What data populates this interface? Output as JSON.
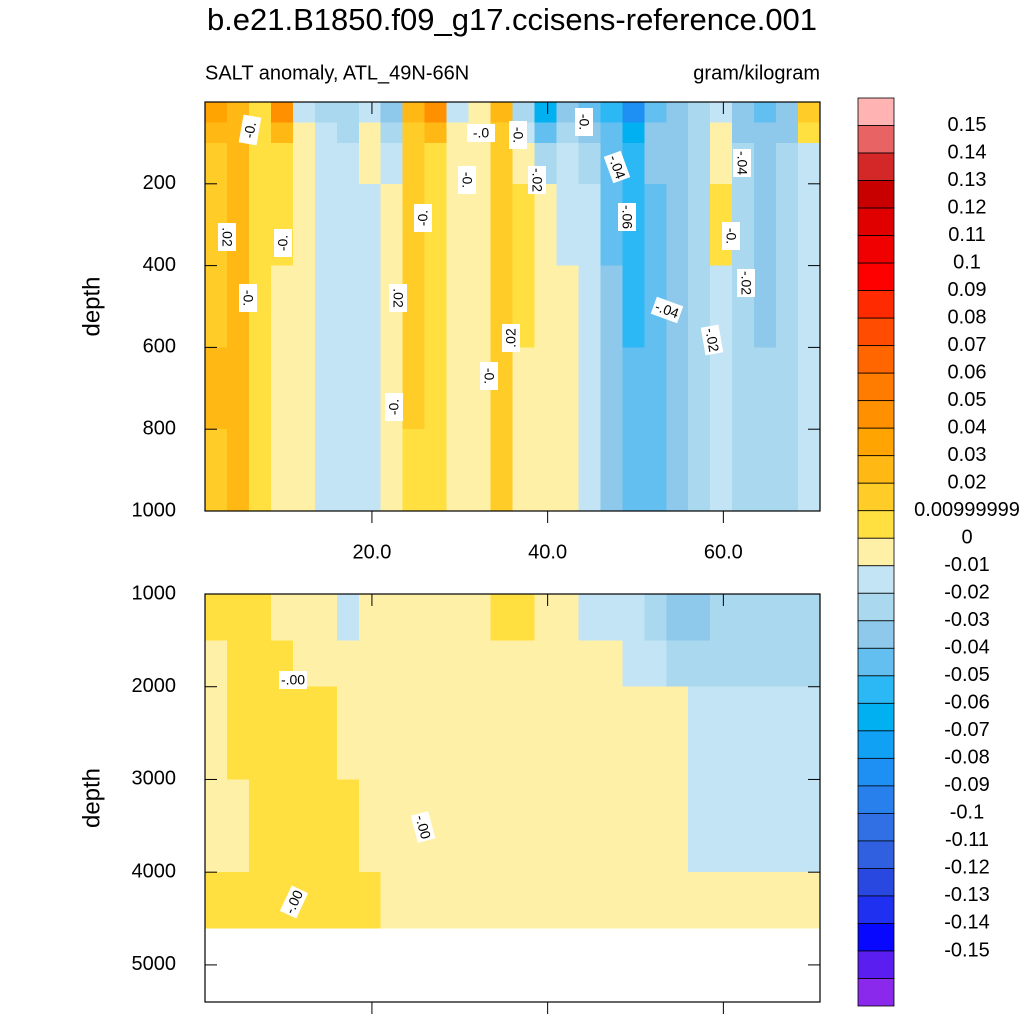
{
  "title": "b.e21.B1850.f09_g17.ccisens-reference.001",
  "chart_data": [
    {
      "type": "heatmap",
      "subtitle_left": "SALT anomaly, ATL_49N-66N",
      "subtitle_right": "gram/kilogram",
      "ylabel": "depth",
      "x_edges": [
        1,
        3.5,
        6,
        8.5,
        11,
        13.5,
        16,
        18.5,
        21,
        23.5,
        26,
        28.5,
        31,
        33.5,
        36,
        38.5,
        41,
        43.5,
        46,
        48.5,
        51,
        53.5,
        56,
        58.5,
        61,
        63.5,
        66,
        68.5,
        71
      ],
      "y_edges": [
        0,
        50,
        100,
        200,
        400,
        600,
        800,
        1000
      ],
      "values": [
        [
          0.03,
          0.025,
          0.005,
          0.045,
          -0.015,
          -0.025,
          -0.03,
          -0.015,
          -0.035,
          0.025,
          0.045,
          -0.015,
          -0.005,
          0.025,
          -0.025,
          -0.065,
          -0.035,
          -0.045,
          -0.055,
          -0.085,
          -0.045,
          -0.035,
          -0.025,
          -0.015,
          -0.035,
          -0.045,
          -0.035,
          0.015
        ],
        [
          0.025,
          0.025,
          0.005,
          0.025,
          -0.005,
          -0.015,
          -0.025,
          -0.005,
          -0.025,
          0.015,
          0.025,
          -0.005,
          -0.005,
          0.015,
          -0.015,
          -0.045,
          -0.025,
          -0.035,
          -0.045,
          -0.065,
          -0.035,
          -0.035,
          -0.025,
          -0.005,
          -0.035,
          -0.035,
          -0.035,
          0.005
        ],
        [
          0.015,
          0.025,
          0.005,
          0.005,
          -0.005,
          -0.015,
          -0.015,
          -0.005,
          -0.015,
          0.015,
          0.005,
          -0.005,
          -0.005,
          0.015,
          -0.005,
          -0.025,
          -0.015,
          -0.025,
          -0.045,
          -0.055,
          -0.035,
          -0.035,
          -0.025,
          -0.005,
          -0.025,
          -0.035,
          -0.025,
          -0.015
        ],
        [
          0.015,
          0.025,
          0.005,
          0.005,
          -0.005,
          -0.015,
          -0.015,
          -0.015,
          -0.005,
          0.015,
          0.005,
          -0.005,
          -0.005,
          0.015,
          0.005,
          -0.005,
          -0.015,
          -0.015,
          -0.045,
          -0.055,
          -0.045,
          -0.035,
          -0.025,
          0.005,
          -0.025,
          -0.035,
          -0.025,
          -0.015
        ],
        [
          0.015,
          0.025,
          0.005,
          -0.005,
          -0.005,
          -0.015,
          -0.015,
          -0.015,
          -0.005,
          0.015,
          0.005,
          -0.005,
          -0.005,
          0.015,
          0.005,
          -0.005,
          -0.005,
          -0.015,
          -0.035,
          -0.055,
          -0.045,
          -0.035,
          -0.025,
          -0.015,
          -0.025,
          -0.035,
          -0.025,
          -0.015
        ],
        [
          0.025,
          0.025,
          0.005,
          -0.005,
          -0.005,
          -0.015,
          -0.015,
          -0.015,
          -0.005,
          0.015,
          0.005,
          -0.005,
          -0.005,
          0.015,
          -0.005,
          -0.005,
          -0.005,
          -0.015,
          -0.035,
          -0.045,
          -0.045,
          -0.035,
          -0.025,
          -0.015,
          -0.025,
          -0.025,
          -0.025,
          -0.015
        ],
        [
          0.015,
          0.025,
          0.005,
          -0.005,
          -0.005,
          -0.015,
          -0.015,
          -0.015,
          -0.005,
          0.005,
          0.005,
          -0.005,
          -0.005,
          0.015,
          -0.005,
          -0.005,
          -0.005,
          -0.015,
          -0.035,
          -0.045,
          -0.045,
          -0.035,
          -0.025,
          -0.015,
          -0.025,
          -0.025,
          -0.025,
          -0.015
        ]
      ],
      "xlim": [
        1,
        71
      ],
      "ylim": [
        0,
        1000
      ],
      "y_reversed": true,
      "xticks": [
        {
          "value": 20,
          "label": "20.0"
        },
        {
          "value": 40,
          "label": "40.0"
        },
        {
          "value": 60,
          "label": "60.0"
        }
      ],
      "yticks": [
        200,
        400,
        600,
        800,
        1000
      ],
      "show_xtick_labels": true,
      "annotations": [
        "-0.",
        "-.0",
        "-0.",
        "-0.",
        ".02",
        "-0.",
        "-0.",
        "-0.",
        "-.02",
        "-.04",
        "-.06",
        "-0.",
        ".02",
        ".02",
        "-0.",
        "-0.",
        "-.04",
        "-.02",
        "-.04",
        "-0.",
        "-.02"
      ]
    },
    {
      "type": "heatmap",
      "ylabel": "depth",
      "x_edges": [
        1,
        3.5,
        6,
        8.5,
        11,
        13.5,
        16,
        18.5,
        21,
        23.5,
        26,
        28.5,
        31,
        33.5,
        36,
        38.5,
        41,
        43.5,
        46,
        48.5,
        51,
        53.5,
        56,
        58.5,
        61,
        63.5,
        66,
        68.5,
        71
      ],
      "y_edges": [
        1000,
        1500,
        2000,
        3000,
        4000,
        4600
      ],
      "values": [
        [
          0.005,
          0.005,
          0.005,
          -0.005,
          -0.005,
          -0.005,
          -0.015,
          -0.005,
          -0.005,
          -0.005,
          -0.005,
          -0.005,
          -0.005,
          0.005,
          0.005,
          -0.005,
          -0.005,
          -0.015,
          -0.015,
          -0.015,
          -0.025,
          -0.035,
          -0.035,
          -0.025,
          -0.025,
          -0.025,
          -0.025,
          -0.025
        ],
        [
          -0.005,
          0.005,
          0.005,
          0.005,
          -0.005,
          -0.005,
          -0.005,
          -0.005,
          -0.005,
          -0.005,
          -0.005,
          -0.005,
          -0.005,
          -0.005,
          -0.005,
          -0.005,
          -0.005,
          -0.005,
          -0.005,
          -0.015,
          -0.015,
          -0.025,
          -0.025,
          -0.025,
          -0.025,
          -0.025,
          -0.025,
          -0.025
        ],
        [
          -0.005,
          0.005,
          0.005,
          0.005,
          0.005,
          0.005,
          -0.005,
          -0.005,
          -0.005,
          -0.005,
          -0.005,
          -0.005,
          -0.005,
          -0.005,
          -0.005,
          -0.005,
          -0.005,
          -0.005,
          -0.005,
          -0.005,
          -0.005,
          -0.005,
          -0.015,
          -0.015,
          -0.015,
          -0.015,
          -0.015,
          -0.015
        ],
        [
          -0.005,
          -0.005,
          0.005,
          0.005,
          0.005,
          0.005,
          0.005,
          -0.005,
          -0.005,
          -0.005,
          -0.005,
          -0.005,
          -0.005,
          -0.005,
          -0.005,
          -0.005,
          -0.005,
          -0.005,
          -0.005,
          -0.005,
          -0.005,
          -0.005,
          -0.015,
          -0.015,
          -0.015,
          -0.015,
          -0.015,
          -0.015
        ],
        [
          0.005,
          0.005,
          0.005,
          0.005,
          0.005,
          0.005,
          0.005,
          0.005,
          -0.005,
          -0.005,
          -0.005,
          -0.005,
          -0.005,
          -0.005,
          -0.005,
          -0.005,
          -0.005,
          -0.005,
          -0.005,
          -0.005,
          -0.005,
          -0.005,
          -0.005,
          -0.005,
          -0.005,
          -0.005,
          -0.005,
          -0.005
        ]
      ],
      "xlim": [
        1,
        71
      ],
      "ylim": [
        1000,
        5400
      ],
      "y_reversed": true,
      "xticks": [
        20,
        40,
        60
      ],
      "yticks": [
        1000,
        2000,
        3000,
        4000,
        5000
      ],
      "show_xtick_labels": false,
      "annotations": [
        "-.00",
        "-.00",
        "-.00"
      ]
    }
  ],
  "colorbar": {
    "levels": [
      0.15,
      0.14,
      0.13,
      0.12,
      0.11,
      0.1,
      0.09,
      0.08,
      0.07,
      0.06,
      0.05,
      0.04,
      0.03,
      0.02,
      0.00999999,
      0,
      -0.01,
      -0.02,
      -0.03,
      -0.04,
      -0.05,
      -0.06,
      -0.07,
      -0.08,
      -0.09,
      -0.1,
      -0.11,
      -0.12,
      -0.13,
      -0.14,
      -0.15
    ],
    "colors": [
      "#ffb3b3",
      "#e86464",
      "#d42828",
      "#c80000",
      "#e00000",
      "#f00000",
      "#ff0000",
      "#ff2a00",
      "#ff4c00",
      "#ff6600",
      "#ff7c00",
      "#ff9000",
      "#ffa400",
      "#ffb814",
      "#ffcc28",
      "#ffe040",
      "#fff0a8",
      "#c2e4f4",
      "#aad8ee",
      "#8ec8ea",
      "#62bff0",
      "#2cb8f4",
      "#00b0f0",
      "#10a0f4",
      "#1e90f4",
      "#2880ec",
      "#3070e4",
      "#3060e0",
      "#2848e0",
      "#2030f0",
      "#0808ff",
      "#5a1ef0",
      "#8a28ec"
    ]
  }
}
